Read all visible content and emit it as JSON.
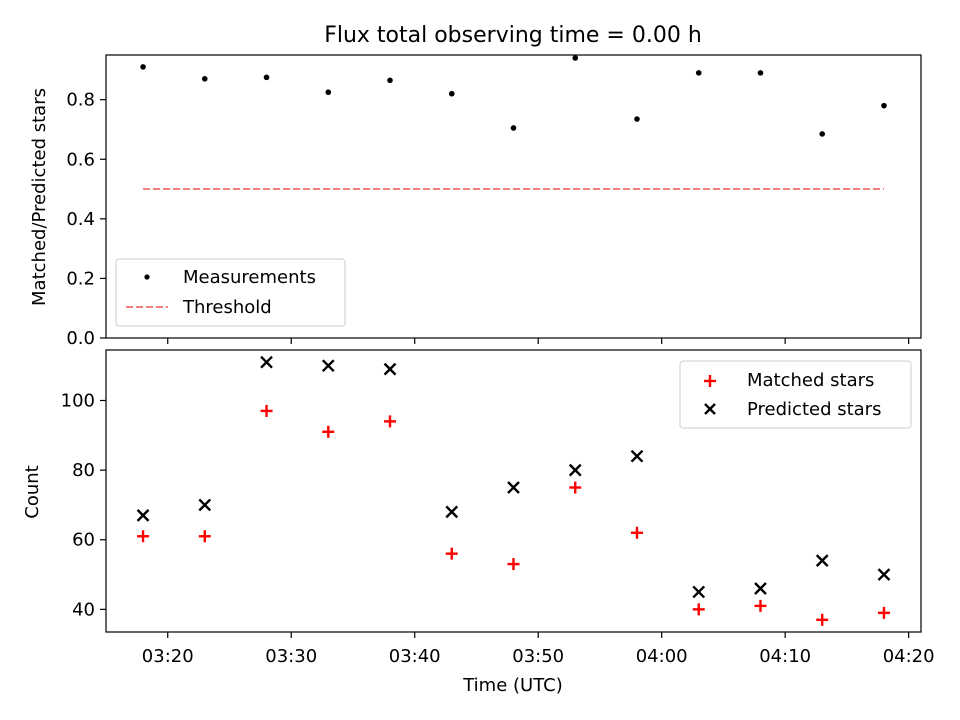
{
  "chart_data": [
    {
      "type": "scatter",
      "title": "Flux total observing time = 0.00 h",
      "xlabel": "",
      "ylabel": "Matched/Predicted stars",
      "xlim": [
        "03:15",
        "04:21"
      ],
      "ylim": [
        0,
        0.95
      ],
      "yticks": [
        "0.0",
        "0.2",
        "0.4",
        "0.6",
        "0.8"
      ],
      "legend_position": "lower-left",
      "series": [
        {
          "name": "Measurements",
          "kind": "points",
          "color": "#000000",
          "x": [
            "03:18",
            "03:23",
            "03:28",
            "03:33",
            "03:38",
            "03:43",
            "03:48",
            "03:53",
            "03:58",
            "04:03",
            "04:08",
            "04:13",
            "04:18"
          ],
          "y": [
            0.91,
            0.87,
            0.875,
            0.825,
            0.865,
            0.82,
            0.705,
            0.94,
            0.735,
            0.89,
            0.89,
            0.685,
            0.78
          ]
        },
        {
          "name": "Threshold",
          "kind": "dashed-line",
          "color": "#f08080",
          "x": [
            "03:18",
            "04:18"
          ],
          "y": [
            0.5,
            0.5
          ]
        }
      ]
    },
    {
      "type": "scatter",
      "xlabel": "Time (UTC)",
      "ylabel": "Count",
      "xlim": [
        "03:15",
        "04:21"
      ],
      "ylim": [
        33.5,
        114.5
      ],
      "xticks": [
        "03:20",
        "03:30",
        "03:40",
        "03:50",
        "04:00",
        "04:10",
        "04:20"
      ],
      "yticks": [
        "40",
        "60",
        "80",
        "100"
      ],
      "legend_position": "upper-right",
      "series": [
        {
          "name": "Matched stars",
          "kind": "plus",
          "color": "#ff0000",
          "x": [
            "03:18",
            "03:23",
            "03:28",
            "03:33",
            "03:38",
            "03:43",
            "03:48",
            "03:53",
            "03:58",
            "04:03",
            "04:08",
            "04:13",
            "04:18"
          ],
          "y": [
            61,
            61,
            97,
            91,
            94,
            56,
            53,
            75,
            62,
            40,
            41,
            37,
            39
          ]
        },
        {
          "name": "Predicted stars",
          "kind": "x",
          "color": "#000000",
          "x": [
            "03:18",
            "03:23",
            "03:28",
            "03:33",
            "03:38",
            "03:43",
            "03:48",
            "03:53",
            "03:58",
            "04:03",
            "04:08",
            "04:13",
            "04:18"
          ],
          "y": [
            67,
            70,
            111,
            110,
            109,
            68,
            75,
            80,
            84,
            45,
            46,
            54,
            50
          ]
        }
      ]
    }
  ]
}
